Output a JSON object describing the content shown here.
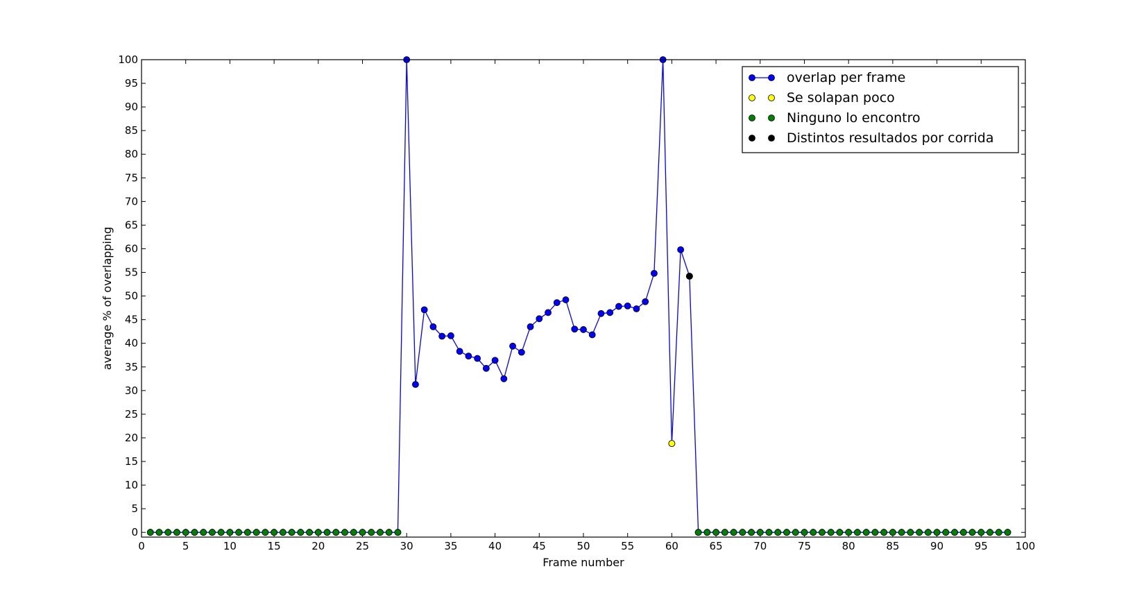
{
  "chart_data": {
    "type": "line",
    "title": "",
    "xlabel": "Frame number",
    "ylabel": "average % of overlapping",
    "xlim": [
      0,
      100
    ],
    "ylim": [
      -1,
      100
    ],
    "xticks": [
      0,
      5,
      10,
      15,
      20,
      25,
      30,
      35,
      40,
      45,
      50,
      55,
      60,
      65,
      70,
      75,
      80,
      85,
      90,
      95,
      100
    ],
    "yticks": [
      0,
      5,
      10,
      15,
      20,
      25,
      30,
      35,
      40,
      45,
      50,
      55,
      60,
      65,
      70,
      75,
      80,
      85,
      90,
      95,
      100
    ],
    "grid": false,
    "legend_position": "top-right",
    "series": [
      {
        "name": "overlap per frame",
        "style": "line-marker",
        "color": "#0000ff",
        "x": [
          1,
          2,
          3,
          4,
          5,
          6,
          7,
          8,
          9,
          10,
          11,
          12,
          13,
          14,
          15,
          16,
          17,
          18,
          19,
          20,
          21,
          22,
          23,
          24,
          25,
          26,
          27,
          28,
          29,
          30,
          31,
          32,
          33,
          34,
          35,
          36,
          37,
          38,
          39,
          40,
          41,
          42,
          43,
          44,
          45,
          46,
          47,
          48,
          49,
          50,
          51,
          52,
          53,
          54,
          55,
          56,
          57,
          58,
          59,
          60,
          61,
          62,
          63,
          64,
          65,
          66,
          67,
          68,
          69,
          70,
          71,
          72,
          73,
          74,
          75,
          76,
          77,
          78,
          79,
          80,
          81,
          82,
          83,
          84,
          85,
          86,
          87,
          88,
          89,
          90,
          91,
          92,
          93,
          94,
          95,
          96,
          97,
          98
        ],
        "y": [
          0,
          0,
          0,
          0,
          0,
          0,
          0,
          0,
          0,
          0,
          0,
          0,
          0,
          0,
          0,
          0,
          0,
          0,
          0,
          0,
          0,
          0,
          0,
          0,
          0,
          0,
          0,
          0,
          0,
          100,
          31.3,
          47.1,
          43.5,
          41.5,
          41.6,
          38.3,
          37.3,
          36.8,
          34.7,
          36.4,
          32.5,
          39.4,
          38.1,
          43.5,
          45.2,
          46.5,
          48.6,
          49.2,
          43.0,
          42.9,
          41.8,
          46.3,
          46.5,
          47.8,
          47.9,
          47.3,
          48.8,
          54.8,
          100,
          18.8,
          59.8,
          54.2,
          0,
          0,
          0,
          0,
          0,
          0,
          0,
          0,
          0,
          0,
          0,
          0,
          0,
          0,
          0,
          0,
          0,
          0,
          0,
          0,
          0,
          0,
          0,
          0,
          0,
          0,
          0,
          0,
          0,
          0,
          0,
          0,
          0,
          0,
          0,
          0
        ]
      },
      {
        "name": "Se solapan poco",
        "style": "marker",
        "color": "#ffff00",
        "x": [
          60
        ],
        "y": [
          18.8
        ]
      },
      {
        "name": "Ninguno lo encontro",
        "style": "marker",
        "color": "#008000",
        "x": [
          1,
          2,
          3,
          4,
          5,
          6,
          7,
          8,
          9,
          10,
          11,
          12,
          13,
          14,
          15,
          16,
          17,
          18,
          19,
          20,
          21,
          22,
          23,
          24,
          25,
          26,
          27,
          28,
          29,
          63,
          64,
          65,
          66,
          67,
          68,
          69,
          70,
          71,
          72,
          73,
          74,
          75,
          76,
          77,
          78,
          79,
          80,
          81,
          82,
          83,
          84,
          85,
          86,
          87,
          88,
          89,
          90,
          91,
          92,
          93,
          94,
          95,
          96,
          97,
          98
        ],
        "y": [
          0,
          0,
          0,
          0,
          0,
          0,
          0,
          0,
          0,
          0,
          0,
          0,
          0,
          0,
          0,
          0,
          0,
          0,
          0,
          0,
          0,
          0,
          0,
          0,
          0,
          0,
          0,
          0,
          0,
          0,
          0,
          0,
          0,
          0,
          0,
          0,
          0,
          0,
          0,
          0,
          0,
          0,
          0,
          0,
          0,
          0,
          0,
          0,
          0,
          0,
          0,
          0,
          0,
          0,
          0,
          0,
          0,
          0,
          0,
          0,
          0,
          0,
          0,
          0,
          0
        ]
      },
      {
        "name": "Distintos resultados por corrida",
        "style": "marker",
        "color": "#000000",
        "x": [
          62
        ],
        "y": [
          54.2
        ]
      }
    ]
  }
}
